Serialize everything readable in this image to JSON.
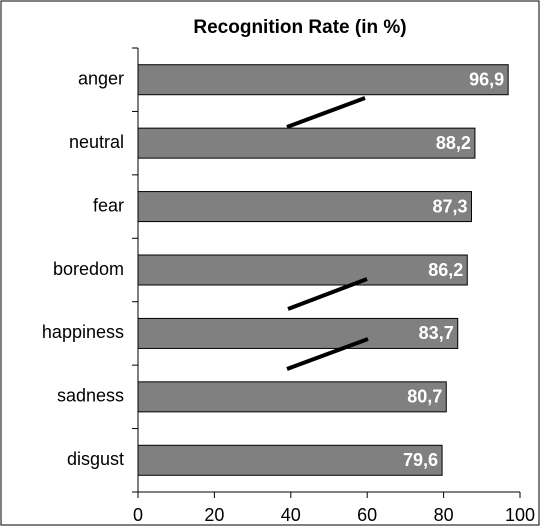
{
  "chart_data": {
    "type": "bar",
    "orientation": "horizontal",
    "title": "Recognition Rate (in %)",
    "categories": [
      "anger",
      "neutral",
      "fear",
      "boredom",
      "happiness",
      "sadness",
      "disgust"
    ],
    "values": [
      96.9,
      88.2,
      87.3,
      86.2,
      83.7,
      80.7,
      79.6
    ],
    "value_labels": [
      "96,9",
      "88,2",
      "87,3",
      "86,2",
      "83,7",
      "80,7",
      "79,6"
    ],
    "color": "#808080",
    "xlim": [
      0,
      100
    ],
    "xticks": [
      0,
      20,
      40,
      60,
      80,
      100
    ],
    "grid": false
  }
}
